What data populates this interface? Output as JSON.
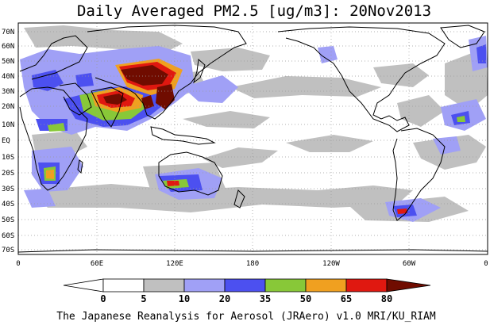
{
  "title": "Daily Averaged PM2.5 [ug/m3]: 20Nov2013",
  "footer": "The Japanese Reanalysis for Aerosol (JRAero) v1.0 MRI/KU_RIAM",
  "lat_labels": [
    "70N",
    "60N",
    "50N",
    "40N",
    "30N",
    "20N",
    "10N",
    "EQ",
    "10S",
    "20S",
    "30S",
    "40S",
    "50S",
    "60S",
    "70S"
  ],
  "lon_labels": [
    "0",
    "60E",
    "120E",
    "180",
    "120W",
    "60W",
    "0"
  ],
  "colorbar": {
    "labels": [
      "0",
      "5",
      "10",
      "20",
      "35",
      "50",
      "65",
      "80"
    ],
    "colors": [
      "#ffffff",
      "#ffffff",
      "#c0c0c0",
      "#a0a0f6",
      "#4c50f0",
      "#88c838",
      "#f0a020",
      "#e01810",
      "#700c00"
    ]
  }
}
